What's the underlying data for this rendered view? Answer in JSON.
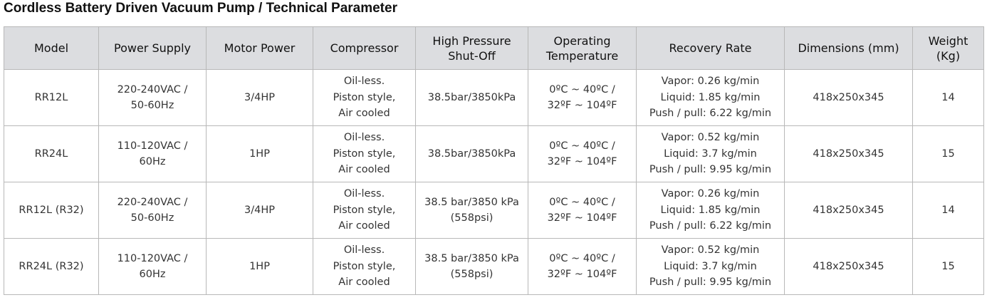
{
  "title": "Cordless Battery Driven Vacuum Pump / Technical Parameter",
  "table": {
    "header": [
      "Model",
      "Power Supply",
      "Motor Power",
      "Compressor",
      [
        "High Pressure",
        "Shut-Off"
      ],
      [
        "Operating",
        "Temperature"
      ],
      "Recovery Rate",
      "Dimensions (mm)",
      [
        "Weight",
        "(Kg)"
      ]
    ],
    "rows": [
      [
        "RR12L",
        [
          "220-240VAC /",
          "50-60Hz"
        ],
        "3/4HP",
        [
          "Oil-less.",
          "Piston style,",
          "Air cooled"
        ],
        "38.5bar/3850kPa",
        [
          "0ºC ~ 40ºC /",
          "32ºF ~ 104ºF"
        ],
        [
          "Vapor: 0.26 kg/min",
          "Liquid: 1.85 kg/min",
          "Push / pull: 6.22 kg/min"
        ],
        "418x250x345",
        "14"
      ],
      [
        "RR24L",
        [
          "110-120VAC /",
          "60Hz"
        ],
        "1HP",
        [
          "Oil-less.",
          "Piston style,",
          "Air cooled"
        ],
        "38.5bar/3850kPa",
        [
          "0ºC ~ 40ºC /",
          "32ºF ~ 104ºF"
        ],
        [
          "Vapor: 0.52 kg/min",
          "Liquid: 3.7 kg/min",
          "Push / pull: 9.95 kg/min"
        ],
        "418x250x345",
        "15"
      ],
      [
        "RR12L (R32)",
        [
          "220-240VAC /",
          "50-60Hz"
        ],
        "3/4HP",
        [
          "Oil-less.",
          "Piston style,",
          "Air cooled"
        ],
        [
          "38.5 bar/3850 kPa",
          "(558psi)"
        ],
        [
          "0ºC ~ 40ºC /",
          "32ºF ~ 104ºF"
        ],
        [
          "Vapor: 0.26 kg/min",
          "Liquid: 1.85 kg/min",
          "Push / pull: 6.22 kg/min"
        ],
        "418x250x345",
        "14"
      ],
      [
        "RR24L (R32)",
        [
          "110-120VAC /",
          "60Hz"
        ],
        "1HP",
        [
          "Oil-less.",
          "Piston style,",
          "Air cooled"
        ],
        [
          "38.5 bar/3850 kPa",
          "(558psi)"
        ],
        [
          "0ºC ~ 40ºC /",
          "32ºF ~ 104ºF"
        ],
        [
          "Vapor: 0.52 kg/min",
          "Liquid: 3.7 kg/min",
          "Push / pull: 9.95 kg/min"
        ],
        "418x250x345",
        "15"
      ]
    ]
  }
}
